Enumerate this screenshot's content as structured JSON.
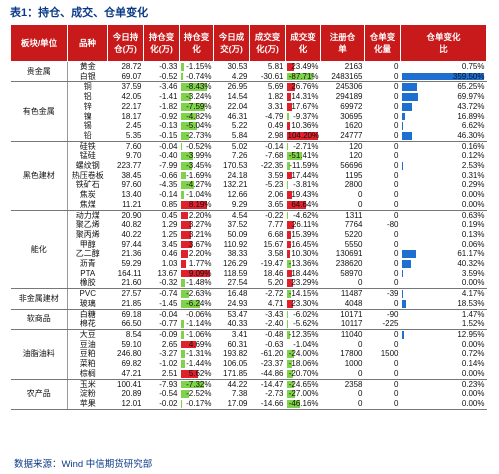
{
  "title": "表1：持仓、成交、仓单变化",
  "source": "数据来源：Wind 中信期货研究部",
  "headers": [
    "板块/单位",
    "品种",
    "今日持仓（万手）",
    "持仓变化（万手）",
    "持仓变化",
    "今日成交（万手）",
    "成交变化（万手）",
    "成交变化",
    "注册仓单（万手）",
    "仓单变化量",
    "仓单变化比"
  ],
  "header_lines": [
    [
      "板块/单位"
    ],
    [
      "品种"
    ],
    [
      "今日持",
      "仓(万)"
    ],
    [
      "持仓变",
      "化(万)"
    ],
    [
      "持仓变",
      "化"
    ],
    [
      "今日成",
      "交(万)"
    ],
    [
      "成交变",
      "化(万)"
    ],
    [
      "成交变",
      "化"
    ],
    [
      "注册仓",
      "单"
    ],
    [
      "仓单变",
      "化量"
    ],
    [
      "仓单变化",
      "比"
    ]
  ],
  "colors": {
    "header_bg": "#c8191b",
    "bar_blue": "#1f6fd1",
    "bar_green": "#7fd34a",
    "bar_red": "#e0202a",
    "title": "#0a3a86"
  },
  "groups": [
    {
      "sector": "贵金属",
      "rows": [
        {
          "p": "黄金",
          "oi": "28.72",
          "oic": "-0.33",
          "oir": "-1.15%",
          "v": "30.53",
          "vc": "5.81",
          "vr": "23.49%",
          "w": "2163",
          "wc": "0",
          "wr": "0.75%"
        },
        {
          "p": "白银",
          "oi": "69.07",
          "oic": "-0.52",
          "oir": "-0.74%",
          "v": "4.29",
          "vc": "-30.61",
          "vr": "-87.71%",
          "w": "2483165",
          "wc": "0",
          "wr": "359.50%"
        }
      ]
    },
    {
      "sector": "有色金属",
      "rows": [
        {
          "p": "铜",
          "oi": "37.59",
          "oic": "-3.46",
          "oir": "-8.43%",
          "v": "26.95",
          "vc": "5.69",
          "vr": "26.76%",
          "w": "245306",
          "wc": "0",
          "wr": "65.25%"
        },
        {
          "p": "铝",
          "oi": "42.05",
          "oic": "-1.41",
          "oir": "-3.24%",
          "v": "14.54",
          "vc": "1.82",
          "vr": "14.31%",
          "w": "294189",
          "wc": "0",
          "wr": "69.97%"
        },
        {
          "p": "锌",
          "oi": "22.17",
          "oic": "-1.82",
          "oir": "-7.59%",
          "v": "22.04",
          "vc": "3.31",
          "vr": "17.67%",
          "w": "69972",
          "wc": "0",
          "wr": "43.72%"
        },
        {
          "p": "镍",
          "oi": "18.17",
          "oic": "-0.92",
          "oir": "-4.82%",
          "v": "46.31",
          "vc": "-4.79",
          "vr": "-9.37%",
          "w": "30695",
          "wc": "0",
          "wr": "16.89%"
        },
        {
          "p": "锡",
          "oi": "2.45",
          "oic": "-0.13",
          "oir": "-5.04%",
          "v": "5.22",
          "vc": "0.49",
          "vr": "10.36%",
          "w": "1620",
          "wc": "0",
          "wr": "6.62%"
        },
        {
          "p": "铅",
          "oi": "5.35",
          "oic": "-0.15",
          "oir": "-2.73%",
          "v": "5.84",
          "vc": "2.98",
          "vr": "104.20%",
          "w": "24777",
          "wc": "0",
          "wr": "46.30%"
        }
      ]
    },
    {
      "sector": "黑色建材",
      "rows": [
        {
          "p": "硅铁",
          "oi": "7.60",
          "oic": "-0.04",
          "oir": "-0.52%",
          "v": "5.02",
          "vc": "-0.14",
          "vr": "-2.71%",
          "w": "120",
          "wc": "0",
          "wr": "0.16%"
        },
        {
          "p": "锰硅",
          "oi": "9.70",
          "oic": "-0.40",
          "oir": "-3.99%",
          "v": "7.26",
          "vc": "-7.68",
          "vr": "-51.41%",
          "w": "120",
          "wc": "0",
          "wr": "0.12%"
        },
        {
          "p": "螺纹钢",
          "oi": "223.77",
          "oic": "-7.99",
          "oir": "-3.45%",
          "v": "170.53",
          "vc": "-22.35",
          "vr": "-11.59%",
          "w": "56696",
          "wc": "0",
          "wr": "2.53%"
        },
        {
          "p": "热压卷板",
          "oi": "38.45",
          "oic": "-0.66",
          "oir": "-1.69%",
          "v": "24.18",
          "vc": "3.59",
          "vr": "17.44%",
          "w": "1195",
          "wc": "0",
          "wr": "0.31%"
        },
        {
          "p": "铁矿石",
          "oi": "97.60",
          "oic": "-4.35",
          "oir": "-4.27%",
          "v": "132.21",
          "vc": "-5.23",
          "vr": "-3.81%",
          "w": "2800",
          "wc": "0",
          "wr": "0.29%"
        },
        {
          "p": "焦炭",
          "oi": "13.40",
          "oic": "-0.14",
          "oir": "-1.04%",
          "v": "12.66",
          "vc": "2.06",
          "vr": "19.43%",
          "w": "0",
          "wc": "0",
          "wr": "0.00%"
        },
        {
          "p": "焦煤",
          "oi": "11.21",
          "oic": "0.85",
          "oir": "8.19%",
          "v": "9.29",
          "vc": "3.65",
          "vr": "64.64%",
          "w": "0",
          "wc": "0",
          "wr": "0.00%"
        }
      ]
    },
    {
      "sector": "能化",
      "rows": [
        {
          "p": "动力煤",
          "oi": "20.90",
          "oic": "0.45",
          "oir": "2.20%",
          "v": "4.54",
          "vc": "-0.22",
          "vr": "-4.62%",
          "w": "1311",
          "wc": "0",
          "wr": "0.63%"
        },
        {
          "p": "聚乙烯",
          "oi": "40.82",
          "oic": "1.29",
          "oir": "3.27%",
          "v": "37.52",
          "vc": "7.77",
          "vr": "26.11%",
          "w": "7764",
          "wc": "-80",
          "wr": "0.19%"
        },
        {
          "p": "聚丙烯",
          "oi": "40.22",
          "oic": "1.25",
          "oir": "3.21%",
          "v": "50.09",
          "vc": "6.68",
          "vr": "15.39%",
          "w": "5220",
          "wc": "0",
          "wr": "0.13%"
        },
        {
          "p": "甲醇",
          "oi": "97.44",
          "oic": "3.45",
          "oir": "3.67%",
          "v": "110.92",
          "vc": "15.67",
          "vr": "16.45%",
          "w": "5550",
          "wc": "0",
          "wr": "0.06%"
        },
        {
          "p": "乙二醇",
          "oi": "21.36",
          "oic": "0.46",
          "oir": "2.20%",
          "v": "38.33",
          "vc": "3.58",
          "vr": "10.30%",
          "w": "130691",
          "wc": "0",
          "wr": "61.17%"
        },
        {
          "p": "沥青",
          "oi": "59.29",
          "oic": "1.03",
          "oir": "1.77%",
          "v": "126.29",
          "vc": "-19.47",
          "vr": "-13.36%",
          "w": "238620",
          "wc": "0",
          "wr": "40.32%"
        },
        {
          "p": "PTA",
          "oi": "164.11",
          "oic": "13.67",
          "oir": "9.09%",
          "v": "118.59",
          "vc": "18.46",
          "vr": "18.44%",
          "w": "58970",
          "wc": "0",
          "wr": "3.59%"
        },
        {
          "p": "橡胶",
          "oi": "21.60",
          "oic": "-0.32",
          "oir": "-1.48%",
          "v": "27.54",
          "vc": "5.20",
          "vr": "23.29%",
          "w": "0",
          "wc": "0",
          "wr": "0.00%"
        }
      ]
    },
    {
      "sector": "非金属建材",
      "rows": [
        {
          "p": "PVC",
          "oi": "27.57",
          "oic": "-0.74",
          "oir": "-2.63%",
          "v": "16.48",
          "vc": "-2.72",
          "vr": "-14.15%",
          "w": "11487",
          "wc": "-39",
          "wr": "4.17%"
        },
        {
          "p": "玻璃",
          "oi": "21.85",
          "oic": "-1.45",
          "oir": "-6.24%",
          "v": "24.93",
          "vc": "4.71",
          "vr": "23.30%",
          "w": "4048",
          "wc": "0",
          "wr": "18.53%"
        }
      ]
    },
    {
      "sector": "软商品",
      "rows": [
        {
          "p": "白糖",
          "oi": "69.18",
          "oic": "-0.04",
          "oir": "-0.06%",
          "v": "53.47",
          "vc": "-3.43",
          "vr": "-6.02%",
          "w": "10171",
          "wc": "-90",
          "wr": "1.47%"
        },
        {
          "p": "棉花",
          "oi": "66.50",
          "oic": "-0.77",
          "oir": "-1.14%",
          "v": "40.33",
          "vc": "-2.40",
          "vr": "-5.62%",
          "w": "10117",
          "wc": "-225",
          "wr": "1.52%"
        }
      ]
    },
    {
      "sector": "油脂油料",
      "rows": [
        {
          "p": "大豆",
          "oi": "8.54",
          "oic": "-0.09",
          "oir": "-1.06%",
          "v": "3.41",
          "vc": "-0.48",
          "vr": "-12.35%",
          "w": "11040",
          "wc": "0",
          "wr": "12.95%"
        },
        {
          "p": "豆油",
          "oi": "59.10",
          "oic": "2.65",
          "oir": "4.69%",
          "v": "60.31",
          "vc": "-0.63",
          "vr": "-1.04%",
          "w": "0",
          "wc": "0",
          "wr": "0.00%"
        },
        {
          "p": "豆粕",
          "oi": "246.80",
          "oic": "-3.27",
          "oir": "-1.31%",
          "v": "193.82",
          "vc": "-61.20",
          "vr": "-24.00%",
          "w": "17800",
          "wc": "1500",
          "wr": "0.72%"
        },
        {
          "p": "菜粕",
          "oi": "69.82",
          "oic": "-1.02",
          "oir": "-1.44%",
          "v": "106.05",
          "vc": "-23.37",
          "vr": "-18.06%",
          "w": "1000",
          "wc": "0",
          "wr": "0.14%"
        },
        {
          "p": "棕榈",
          "oi": "47.21",
          "oic": "2.51",
          "oir": "5.62%",
          "v": "171.85",
          "vc": "-44.86",
          "vr": "-20.70%",
          "w": "0",
          "wc": "0",
          "wr": "0.00%"
        }
      ]
    },
    {
      "sector": "农产品",
      "rows": [
        {
          "p": "玉米",
          "oi": "100.41",
          "oic": "-7.93",
          "oir": "-7.32%",
          "v": "44.22",
          "vc": "-14.47",
          "vr": "-24.65%",
          "w": "2358",
          "wc": "0",
          "wr": "0.23%"
        },
        {
          "p": "淀粉",
          "oi": "20.89",
          "oic": "-0.54",
          "oir": "-2.52%",
          "v": "7.38",
          "vc": "-2.73",
          "vr": "-27.00%",
          "w": "0",
          "wc": "0",
          "wr": "0.00%"
        },
        {
          "p": "苹果",
          "oi": "12.01",
          "oic": "-0.02",
          "oir": "-0.17%",
          "v": "17.09",
          "vc": "-14.66",
          "vr": "-46.16%",
          "w": "0",
          "wc": "0",
          "wr": "0.00%"
        }
      ]
    }
  ]
}
